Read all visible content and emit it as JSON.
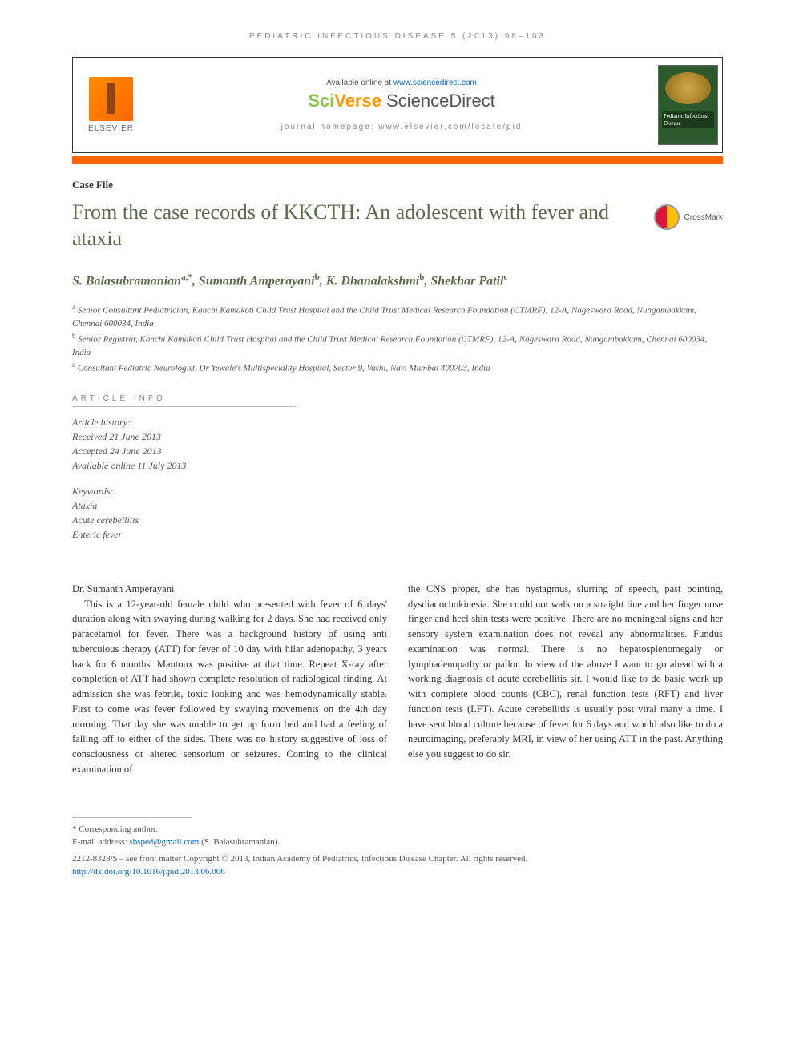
{
  "running_head": "PEDIATRIC INFECTIOUS DISEASE 5 (2013) 98–103",
  "masthead": {
    "publisher": "ELSEVIER",
    "available_text": "Available online at ",
    "available_link": "www.sciencedirect.com",
    "platform_sci": "Sci",
    "platform_verse": "Verse ",
    "platform_direct": "ScienceDirect",
    "homepage": "journal homepage: www.elsevier.com/locate/pid",
    "cover_title": "Pediatric Infectious Disease"
  },
  "article_type": "Case File",
  "title": "From the case records of KKCTH: An adolescent with fever and ataxia",
  "crossmark_label": "CrossMark",
  "authors_html": "S. Balasubramanian<sup>a,*</sup>, Sumanth Amperayani<sup>b</sup>, K. Dhanalakshmi<sup>b</sup>, Shekhar Patil<sup>c</sup>",
  "affiliations": [
    {
      "sup": "a",
      "text": "Senior Consultant Pediatrician, Kanchi Kamakoti Child Trust Hospital and the Child Trust Medical Research Foundation (CTMRF), 12-A, Nageswara Road, Nungambakkam, Chennai 600034, India"
    },
    {
      "sup": "b",
      "text": "Senior Registrar, Kanchi Kamakoti Child Trust Hospital and the Child Trust Medical Research Foundation (CTMRF), 12-A, Nageswara Road, Nungambakkam, Chennai 600034, India"
    },
    {
      "sup": "c",
      "text": "Consultant Pediatric Neurologist, Dr Yewale's Multispeciality Hospital, Sector 9, Vashi, Navi Mumbai 400703, India"
    }
  ],
  "article_info": {
    "heading": "ARTICLE INFO",
    "history_label": "Article history:",
    "received": "Received 21 June 2013",
    "accepted": "Accepted 24 June 2013",
    "online": "Available online 11 July 2013",
    "keywords_label": "Keywords:",
    "keywords": [
      "Ataxia",
      "Acute cerebellitis",
      "Enteric fever"
    ]
  },
  "body": {
    "speaker": "Dr. Sumanth Amperayani",
    "col1": "This is a 12-year-old female child who presented with fever of 6 days' duration along with swaying during walking for 2 days. She had received only paracetamol for fever. There was a background history of using anti tuberculous therapy (ATT) for fever of 10 day with hilar adenopathy, 3 years back for 6 months. Mantoux was positive at that time. Repeat X-ray after completion of ATT had shown complete resolution of radiological finding. At admission she was febrile, toxic looking and was hemodynamically stable. First to come was fever followed by swaying movements on the 4th day morning. That day she was unable to get up form bed and had a feeling of falling off to either of the sides. There was no history suggestive of loss of consciousness or altered sensorium or seizures. Coming to the clinical examination of",
    "col2": "the CNS proper, she has nystagmus, slurring of speech, past pointing, dysdiadochokinesia. She could not walk on a straight line and her finger nose finger and heel shin tests were positive. There are no meningeal signs and her sensory system examination does not reveal any abnormalities. Fundus examination was normal. There is no hepatosplenomegaly or lymphadenopathy or pallor. In view of the above I want to go ahead with a working diagnosis of acute cerebellitis sir. I would like to do basic work up with complete blood counts (CBC), renal function tests (RFT) and liver function tests (LFT). Acute cerebellitis is usually post viral many a time. I have sent blood culture because of fever for 6 days and would also like to do a neuroimaging, preferably MRI, in view of her using ATT in the past. Anything else you suggest to do sir."
  },
  "footnotes": {
    "corresponding": "* Corresponding author.",
    "email_label": "E-mail address: ",
    "email": "sbsped@gmail.com",
    "email_suffix": " (S. Balasubramanian).",
    "issn": "2212-8328/$ – see front matter Copyright © 2013, Indian Academy of Pediatrics, Infectious Disease Chapter. All rights reserved.",
    "doi": "http://dx.doi.org/10.1016/j.pid.2013.06.006"
  },
  "colors": {
    "accent_green": "#5a6b4a",
    "orange_bar": "#ff6600",
    "link_blue": "#0066cc"
  }
}
